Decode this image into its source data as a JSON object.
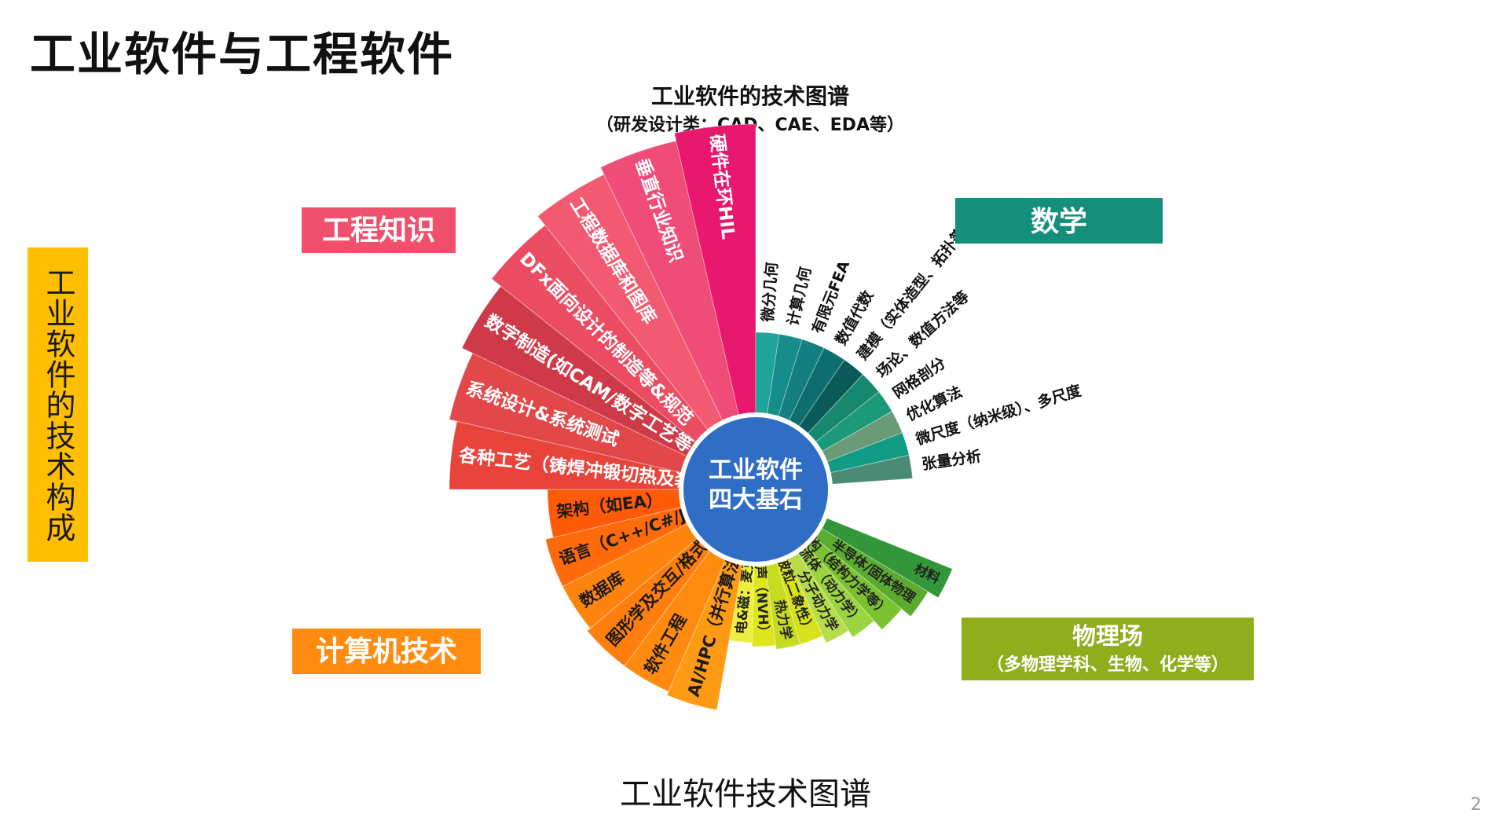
{
  "slide": {
    "title": "工业软件与工程软件",
    "side_label": "工业软件的技术构成",
    "caption": "工业软件技术图谱",
    "page_number": "2"
  },
  "diagram": {
    "top_title": "工业软件的技术图谱",
    "top_subtitle": "（研发设计类：CAD、CAE、EDA等）",
    "center_line1": "工业软件",
    "center_line2": "四大基石",
    "categories": {
      "engineering": {
        "label": "工程知识",
        "color": "#f0506e"
      },
      "math": {
        "label": "数学",
        "color": "#148f7a"
      },
      "physics": {
        "label": "物理场",
        "sublabel": "（多物理学科、生物、化学等）",
        "color": "#8fae1b"
      },
      "computing": {
        "label": "计算机技术",
        "color": "#ff8c10"
      }
    },
    "engineering_items": [
      {
        "label": "各种工艺（铸焊冲锻切热及装配）",
        "color": "#e8443c"
      },
      {
        "label": "系统设计&系统测试",
        "color": "#e2484a"
      },
      {
        "label": "数字制造(如CAM/数字工艺等)",
        "color": "#cf3a48"
      },
      {
        "label": "DFx面向设计的制造等&规范",
        "color": "#ec4c62"
      },
      {
        "label": "工程数据库和图库",
        "color": "#f15a70"
      },
      {
        "label": "垂直行业知识",
        "color": "#f04c78"
      },
      {
        "label": "硬件在环HIL",
        "color": "#e8186e"
      }
    ],
    "math_items": [
      {
        "label": "微分几何",
        "color": "#1fa39a"
      },
      {
        "label": "计算几何",
        "color": "#178c8c"
      },
      {
        "label": "有限元FEA",
        "color": "#137f80"
      },
      {
        "label": "数值代数",
        "color": "#0e6e6e"
      },
      {
        "label": "建模（实体造型、拓扑等）",
        "color": "#0a5a5a"
      },
      {
        "label": "场论、数值方法等",
        "color": "#15886f"
      },
      {
        "label": "网格剖分",
        "color": "#1a9a78"
      },
      {
        "label": "优化算法",
        "color": "#6a9a78"
      },
      {
        "label": "微尺度（纳米级）、多尺度",
        "color": "#119a84"
      },
      {
        "label": "张量分析",
        "color": "#4a8a74"
      }
    ],
    "physics_items": [
      {
        "label": "材料",
        "color": "#33973a"
      },
      {
        "label": "半导体/固体物理",
        "color": "#5aab2e"
      },
      {
        "label": "结构（结构力学等）",
        "color": "#7cc22e"
      },
      {
        "label": "流体（动力学）",
        "color": "#9bd441"
      },
      {
        "label": "分子动力学",
        "color": "#b6dc4a"
      },
      {
        "label": "光学（波粒二象性）",
        "color": "#d8e21a"
      },
      {
        "label": "热力学",
        "color": "#c6dc20"
      },
      {
        "label": "声（NVH）",
        "color": "#e0e61e"
      },
      {
        "label": "电&磁：麦克斯韦方程",
        "color": "#eeee40"
      }
    ],
    "computing_items": [
      {
        "label": "AI/HPC（并行算法等）/云",
        "color": "#ff9a14"
      },
      {
        "label": "软件工程",
        "color": "#ff8a10"
      },
      {
        "label": "图形学及交互/格式",
        "color": "#ff7e0e"
      },
      {
        "label": "数据库",
        "color": "#ff840e"
      },
      {
        "label": "语言（C++/C#/Java）",
        "color": "#ff6a0a"
      },
      {
        "label": "架构（如EA）",
        "color": "#ff5a08"
      }
    ]
  }
}
